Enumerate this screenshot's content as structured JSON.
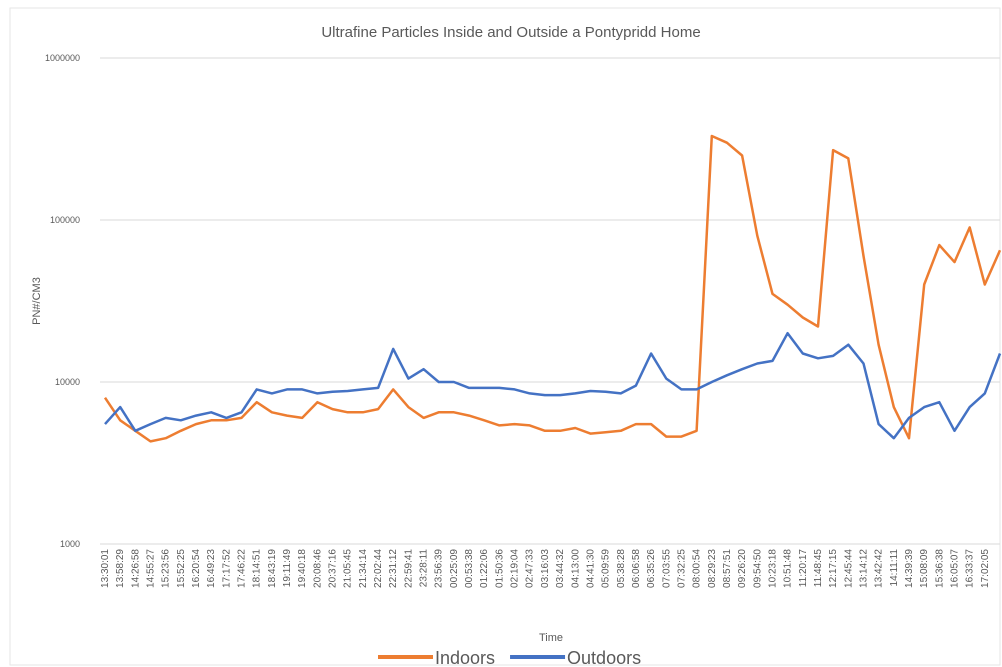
{
  "chart_data": {
    "type": "line",
    "title": "Ultrafine Particles Inside and Outside a Pontypridd Home",
    "x_label": "Time",
    "y_label": "PN#/CM3",
    "log_scale": true,
    "grid": true,
    "legend": "bottom",
    "ylim": [
      1000,
      1000000
    ],
    "yticks": [
      1000,
      10000,
      100000,
      1000000
    ],
    "categories": [
      "13:30:01",
      "13:58:29",
      "14:26:58",
      "14:55:27",
      "15:23:56",
      "15:52:25",
      "16:20:54",
      "16:49:23",
      "17:17:52",
      "17:46:22",
      "18:14:51",
      "18:43:19",
      "19:11:49",
      "19:40:18",
      "20:08:46",
      "20:37:16",
      "21:05:45",
      "21:34:14",
      "22:02:44",
      "22:31:12",
      "22:59:41",
      "23:28:11",
      "23:56:39",
      "00:25:09",
      "00:53:38",
      "01:22:06",
      "01:50:36",
      "02:19:04",
      "02:47:33",
      "03:16:03",
      "03:44:32",
      "04:13:00",
      "04:41:30",
      "05:09:59",
      "05:38:28",
      "06:06:58",
      "06:35:26",
      "07:03:55",
      "07:32:25",
      "08:00:54",
      "08:29:23",
      "08:57:51",
      "09:26:20",
      "09:54:50",
      "10:23:18",
      "10:51:48",
      "11:20:17",
      "11:48:45",
      "12:17:15",
      "12:45:44",
      "13:14:12",
      "13:42:42",
      "14:11:11",
      "14:39:39",
      "15:08:09",
      "15:36:38",
      "16:05:07",
      "16:33:37",
      "17:02:05",
      null
    ],
    "series": [
      {
        "name": "Indoors",
        "color": "#ed7d31",
        "values": [
          8000,
          5800,
          5000,
          4300,
          4500,
          5000,
          5500,
          5800,
          5800,
          6000,
          7500,
          6500,
          6200,
          6000,
          7500,
          6800,
          6500,
          6500,
          6800,
          9000,
          7000,
          6000,
          6500,
          6500,
          6200,
          5800,
          5400,
          5500,
          5400,
          5000,
          5000,
          5200,
          4800,
          4900,
          5000,
          5500,
          5500,
          4600,
          4600,
          5000,
          330000,
          300000,
          250000,
          80000,
          35000,
          30000,
          25000,
          22000,
          270000,
          240000,
          60000,
          17000,
          7000,
          4500,
          40000,
          70000,
          55000,
          90000,
          40000,
          65000
        ]
      },
      {
        "name": "Outdoors",
        "color": "#4472c4",
        "values": [
          5500,
          7000,
          5000,
          5500,
          6000,
          5800,
          6200,
          6500,
          6000,
          6500,
          9000,
          8500,
          9000,
          9000,
          8500,
          8700,
          8800,
          9000,
          9200,
          16000,
          10500,
          12000,
          10000,
          10000,
          9200,
          9200,
          9200,
          9000,
          8500,
          8300,
          8300,
          8500,
          8800,
          8700,
          8500,
          9500,
          15000,
          10500,
          9000,
          9000,
          10000,
          11000,
          12000,
          13000,
          13500,
          20000,
          15000,
          14000,
          14500,
          17000,
          13000,
          5500,
          4500,
          6000,
          7000,
          7500,
          5000,
          7000,
          8500,
          15000
        ]
      }
    ]
  }
}
